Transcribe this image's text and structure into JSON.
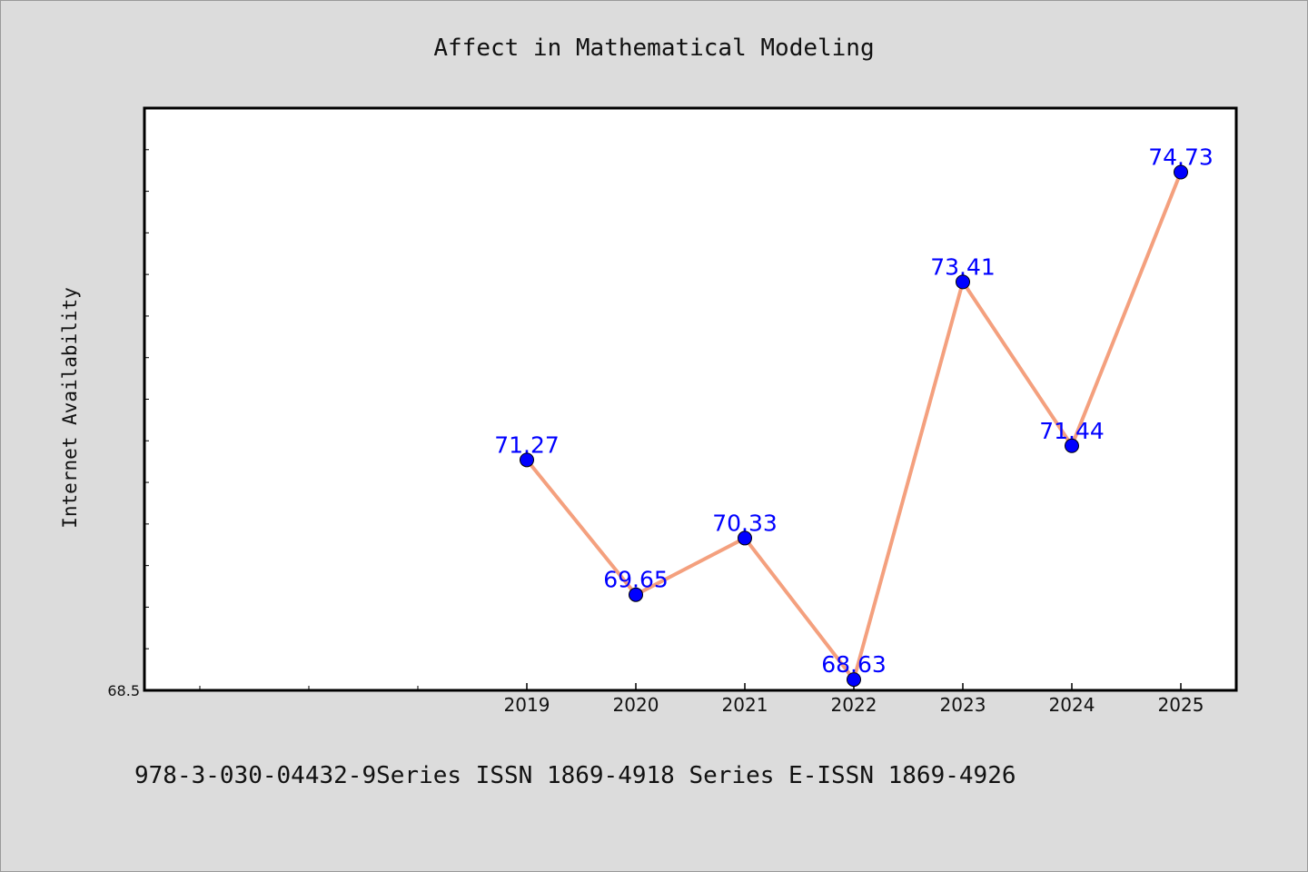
{
  "chart_data": {
    "type": "line",
    "title": "Affect in Mathematical Modeling",
    "xlabel": "",
    "ylabel": "Internet Availability",
    "categories": [
      "2019",
      "2020",
      "2021",
      "2022",
      "2023",
      "2024",
      "2025"
    ],
    "values": [
      71.27,
      69.65,
      70.33,
      68.63,
      73.41,
      71.44,
      74.73
    ],
    "data_labels": [
      "71.27",
      "69.65",
      "70.33",
      "68.63",
      "73.41",
      "71.44",
      "74.73"
    ],
    "y_tick_labels": [
      "68.5"
    ],
    "ylim": [
      68.5,
      75.5
    ],
    "grid": false,
    "line_color": "#f4a07e",
    "marker_color": "#0000ff",
    "label_color": "#0000ff"
  },
  "footer": {
    "text": "978-3-030-04432-9Series ISSN 1869-4918 Series E-ISSN 1869-4926"
  }
}
